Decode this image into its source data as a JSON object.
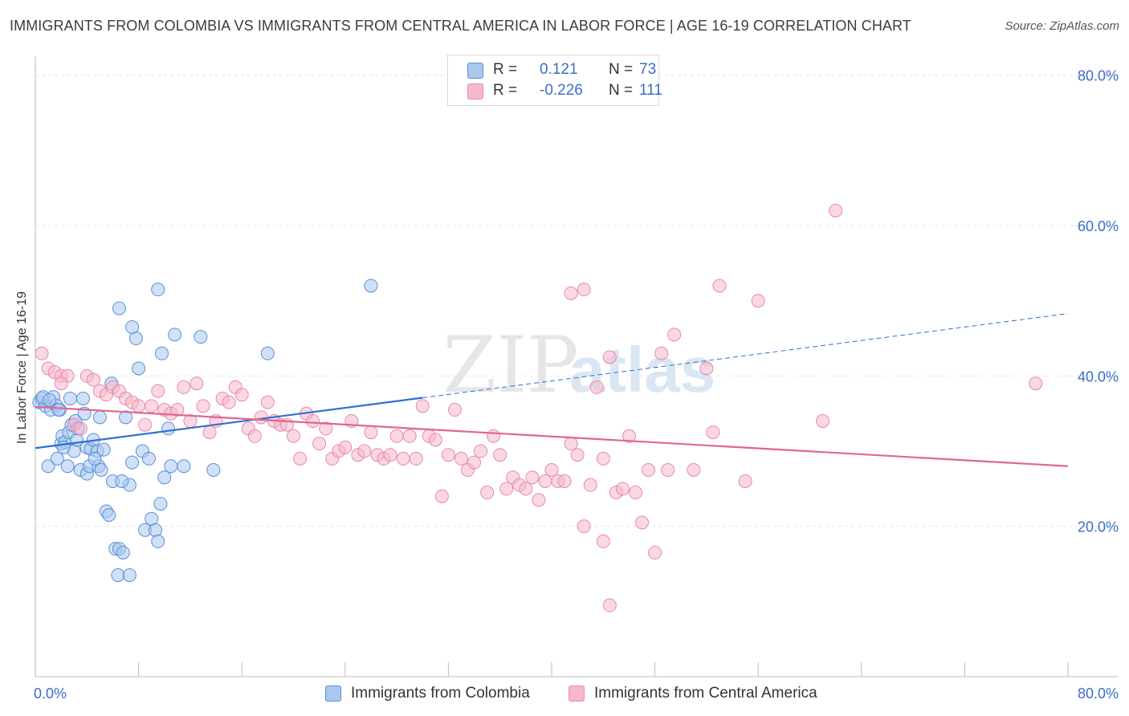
{
  "title": "IMMIGRANTS FROM COLOMBIA VS IMMIGRANTS FROM CENTRAL AMERICA IN LABOR FORCE | AGE 16-19 CORRELATION CHART",
  "source": "Source: ZipAtlas.com",
  "watermark": {
    "zip": "ZIP",
    "atlas": "atlas"
  },
  "legend": {
    "rows": [
      {
        "r_label": "R =",
        "r_value": "0.121",
        "n_label": "N =",
        "n_value": "73",
        "color": "#a9c8f0"
      },
      {
        "r_label": "R =",
        "r_value": "-0.226",
        "n_label": "N =",
        "n_value": "111",
        "color": "#f6b8cc"
      }
    ]
  },
  "bottom_legend": [
    {
      "label": "Immigrants from Colombia",
      "color": "#a9c8f0"
    },
    {
      "label": "Immigrants from Central America",
      "color": "#f6b8cc"
    }
  ],
  "chart_data": {
    "type": "scatter",
    "title": "IMMIGRANTS FROM COLOMBIA VS IMMIGRANTS FROM CENTRAL AMERICA IN LABOR FORCE | AGE 16-19 CORRELATION CHART",
    "xlabel": "",
    "ylabel": "In Labor Force | Age 16-19",
    "xlim": [
      0,
      80
    ],
    "ylim": [
      0,
      82
    ],
    "x_tick_labels": [
      {
        "value": 0,
        "label": "0.0%"
      },
      {
        "value": 80,
        "label": "80.0%"
      }
    ],
    "y_tick_labels": [
      {
        "value": 20,
        "label": "20.0%"
      },
      {
        "value": 40,
        "label": "40.0%"
      },
      {
        "value": 60,
        "label": "60.0%"
      },
      {
        "value": 80,
        "label": "80.0%"
      }
    ],
    "grid": true,
    "legend_position": "top-center",
    "series": [
      {
        "name": "Immigrants from Colombia",
        "color": "#a9c8f0",
        "stroke": "#5b8fd6",
        "line_color": "#2f6fd0",
        "trend": {
          "x0": 0,
          "y0": 30.4,
          "x1": 30,
          "y1": 37.1,
          "dash_to_x": 80,
          "dash_to_y": 48.3
        },
        "points": [
          [
            0.3,
            36.5
          ],
          [
            0.5,
            37.0
          ],
          [
            0.8,
            36.0
          ],
          [
            1.0,
            28.0
          ],
          [
            1.2,
            35.5
          ],
          [
            1.4,
            37.2
          ],
          [
            1.6,
            36.1
          ],
          [
            1.7,
            29.0
          ],
          [
            1.9,
            35.5
          ],
          [
            2.0,
            31.0
          ],
          [
            2.1,
            32.0
          ],
          [
            2.3,
            31.2
          ],
          [
            2.5,
            28.0
          ],
          [
            2.6,
            32.5
          ],
          [
            2.8,
            33.5
          ],
          [
            3.0,
            30.0
          ],
          [
            3.1,
            34.0
          ],
          [
            3.2,
            31.5
          ],
          [
            3.3,
            33.0
          ],
          [
            3.5,
            27.5
          ],
          [
            3.7,
            37.0
          ],
          [
            4.0,
            30.5
          ],
          [
            4.0,
            27.0
          ],
          [
            4.2,
            28.0
          ],
          [
            4.3,
            30.3
          ],
          [
            4.5,
            31.5
          ],
          [
            4.8,
            30.0
          ],
          [
            4.9,
            28.0
          ],
          [
            5.0,
            34.5
          ],
          [
            5.1,
            27.5
          ],
          [
            5.5,
            22.0
          ],
          [
            5.7,
            21.5
          ],
          [
            5.9,
            39.0
          ],
          [
            6.0,
            26.0
          ],
          [
            6.2,
            17.0
          ],
          [
            6.5,
            17.0
          ],
          [
            6.8,
            16.5
          ],
          [
            7.0,
            34.5
          ],
          [
            7.3,
            25.5
          ],
          [
            7.5,
            28.5
          ],
          [
            7.8,
            45.0
          ],
          [
            8.0,
            41.0
          ],
          [
            8.3,
            30.0
          ],
          [
            8.5,
            19.5
          ],
          [
            8.8,
            29.0
          ],
          [
            9.0,
            21.0
          ],
          [
            9.3,
            19.5
          ],
          [
            9.5,
            18.0
          ],
          [
            9.8,
            43.0
          ],
          [
            10.0,
            26.5
          ],
          [
            10.3,
            33.0
          ],
          [
            10.5,
            28.0
          ],
          [
            10.8,
            45.5
          ],
          [
            11.5,
            28.0
          ],
          [
            13.8,
            27.5
          ],
          [
            6.4,
            13.5
          ],
          [
            7.3,
            13.5
          ],
          [
            9.7,
            23.0
          ],
          [
            6.5,
            49.0
          ],
          [
            9.5,
            51.5
          ],
          [
            12.8,
            45.2
          ],
          [
            18.0,
            43.0
          ],
          [
            26.0,
            52.0
          ],
          [
            7.5,
            46.5
          ],
          [
            2.7,
            37.0
          ],
          [
            1.8,
            35.5
          ],
          [
            0.6,
            37.2
          ],
          [
            3.8,
            35.0
          ],
          [
            4.6,
            29.0
          ],
          [
            6.7,
            26.0
          ],
          [
            2.2,
            30.5
          ],
          [
            1.1,
            36.8
          ],
          [
            5.3,
            30.2
          ]
        ]
      },
      {
        "name": "Immigrants from Central America",
        "color": "#f6b8cc",
        "stroke": "#e889a8",
        "line_color": "#e0668f",
        "trend": {
          "x0": 0,
          "y0": 35.9,
          "x1": 80,
          "y1": 28.0
        },
        "points": [
          [
            0.5,
            43.0
          ],
          [
            1.0,
            41.0
          ],
          [
            1.5,
            40.5
          ],
          [
            2.0,
            40.0
          ],
          [
            2.5,
            40.0
          ],
          [
            3.0,
            33.5
          ],
          [
            3.5,
            33.0
          ],
          [
            4.0,
            40.0
          ],
          [
            4.5,
            39.5
          ],
          [
            5.0,
            38.0
          ],
          [
            5.5,
            37.5
          ],
          [
            6.0,
            38.5
          ],
          [
            6.5,
            38.0
          ],
          [
            7.0,
            37.0
          ],
          [
            7.5,
            36.5
          ],
          [
            8.0,
            36.0
          ],
          [
            8.5,
            33.5
          ],
          [
            9.0,
            36.0
          ],
          [
            9.5,
            38.0
          ],
          [
            10.0,
            35.5
          ],
          [
            10.5,
            35.0
          ],
          [
            11.0,
            35.5
          ],
          [
            11.5,
            38.5
          ],
          [
            12.0,
            34.0
          ],
          [
            12.5,
            39.0
          ],
          [
            13.0,
            36.0
          ],
          [
            13.5,
            32.5
          ],
          [
            14.0,
            34.0
          ],
          [
            14.5,
            37.0
          ],
          [
            15.0,
            36.5
          ],
          [
            15.5,
            38.5
          ],
          [
            16.0,
            37.5
          ],
          [
            16.5,
            33.0
          ],
          [
            17.0,
            32.0
          ],
          [
            17.5,
            34.5
          ],
          [
            18.0,
            36.5
          ],
          [
            18.5,
            34.0
          ],
          [
            19.0,
            33.5
          ],
          [
            19.5,
            33.5
          ],
          [
            20.0,
            32.0
          ],
          [
            20.5,
            29.0
          ],
          [
            21.0,
            35.0
          ],
          [
            21.5,
            34.0
          ],
          [
            22.0,
            31.0
          ],
          [
            22.5,
            33.0
          ],
          [
            23.0,
            29.0
          ],
          [
            23.5,
            30.0
          ],
          [
            24.0,
            30.5
          ],
          [
            24.5,
            34.0
          ],
          [
            25.0,
            29.5
          ],
          [
            25.5,
            30.0
          ],
          [
            26.0,
            32.5
          ],
          [
            26.5,
            29.5
          ],
          [
            27.0,
            29.0
          ],
          [
            27.5,
            29.5
          ],
          [
            28.0,
            32.0
          ],
          [
            28.5,
            29.0
          ],
          [
            29.0,
            32.0
          ],
          [
            29.5,
            29.0
          ],
          [
            30.0,
            36.0
          ],
          [
            30.5,
            32.0
          ],
          [
            31.0,
            31.5
          ],
          [
            31.5,
            24.0
          ],
          [
            32.0,
            29.5
          ],
          [
            32.5,
            35.5
          ],
          [
            33.0,
            29.0
          ],
          [
            33.5,
            27.5
          ],
          [
            34.0,
            28.5
          ],
          [
            34.5,
            30.0
          ],
          [
            35.0,
            24.5
          ],
          [
            35.5,
            32.0
          ],
          [
            36.0,
            29.5
          ],
          [
            36.5,
            25.0
          ],
          [
            37.0,
            26.5
          ],
          [
            37.5,
            25.5
          ],
          [
            38.0,
            25.0
          ],
          [
            38.5,
            26.5
          ],
          [
            39.0,
            23.5
          ],
          [
            39.5,
            26.0
          ],
          [
            40.0,
            27.5
          ],
          [
            40.5,
            26.0
          ],
          [
            41.0,
            26.0
          ],
          [
            41.5,
            31.0
          ],
          [
            42.0,
            29.5
          ],
          [
            42.5,
            20.0
          ],
          [
            43.0,
            25.5
          ],
          [
            43.5,
            38.5
          ],
          [
            44.0,
            29.0
          ],
          [
            44.5,
            42.5
          ],
          [
            45.0,
            24.5
          ],
          [
            45.5,
            25.0
          ],
          [
            46.0,
            32.0
          ],
          [
            46.5,
            24.5
          ],
          [
            47.0,
            20.5
          ],
          [
            47.5,
            27.5
          ],
          [
            48.0,
            16.5
          ],
          [
            48.5,
            43.0
          ],
          [
            49.0,
            27.5
          ],
          [
            49.5,
            45.5
          ],
          [
            51.0,
            27.5
          ],
          [
            52.0,
            41.0
          ],
          [
            52.5,
            32.5
          ],
          [
            53.0,
            52.0
          ],
          [
            55.0,
            26.0
          ],
          [
            56.0,
            50.0
          ],
          [
            61.0,
            34.0
          ],
          [
            62.0,
            62.0
          ],
          [
            77.5,
            39.0
          ],
          [
            42.5,
            51.5
          ],
          [
            41.5,
            51.0
          ],
          [
            44.0,
            18.0
          ],
          [
            44.5,
            9.5
          ],
          [
            2.0,
            39.0
          ]
        ]
      }
    ]
  }
}
